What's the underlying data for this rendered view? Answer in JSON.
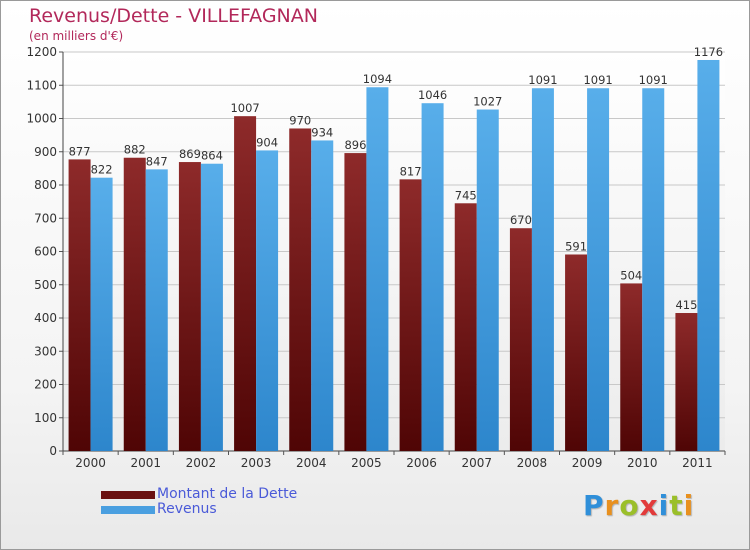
{
  "title": "Revenus/Dette - VILLEFAGNAN",
  "subtitle": "(en milliers d'€)",
  "colors": {
    "dette": "#7a1818",
    "revenus": "#4a9fe0",
    "title": "#b2285a",
    "legend_text": "#4a5ad8"
  },
  "logo": {
    "text": "Proxiti",
    "letters": [
      "P",
      "r",
      "o",
      "x",
      "i",
      "t",
      "i"
    ],
    "colors": [
      "#2f8fd9",
      "#e8901e",
      "#9bbf2a",
      "#e23a3a",
      "#2f8fd9",
      "#9bbf2a",
      "#e8901e"
    ]
  },
  "legend": [
    {
      "label": "Montant de la Dette",
      "color": "#6a1010"
    },
    {
      "label": "Revenus",
      "color": "#4a9fe0"
    }
  ],
  "chart_data": {
    "type": "bar",
    "title": "Revenus/Dette - VILLEFAGNAN",
    "subtitle": "(en milliers d'€)",
    "categories": [
      "2000",
      "2001",
      "2002",
      "2003",
      "2004",
      "2005",
      "2006",
      "2007",
      "2008",
      "2009",
      "2010",
      "2011"
    ],
    "series": [
      {
        "name": "Montant de la Dette",
        "values": [
          877,
          882,
          869,
          1007,
          970,
          896,
          817,
          745,
          670,
          591,
          504,
          415
        ]
      },
      {
        "name": "Revenus",
        "values": [
          822,
          847,
          864,
          904,
          934,
          1094,
          1046,
          1027,
          1091,
          1091,
          1091,
          1176
        ]
      }
    ],
    "ylim": [
      0,
      1200
    ],
    "yticks": [
      0,
      100,
      200,
      300,
      400,
      500,
      600,
      700,
      800,
      900,
      1000,
      1100,
      1200
    ],
    "grid": true,
    "legend_position": "bottom-left",
    "xlabel": "",
    "ylabel": ""
  }
}
